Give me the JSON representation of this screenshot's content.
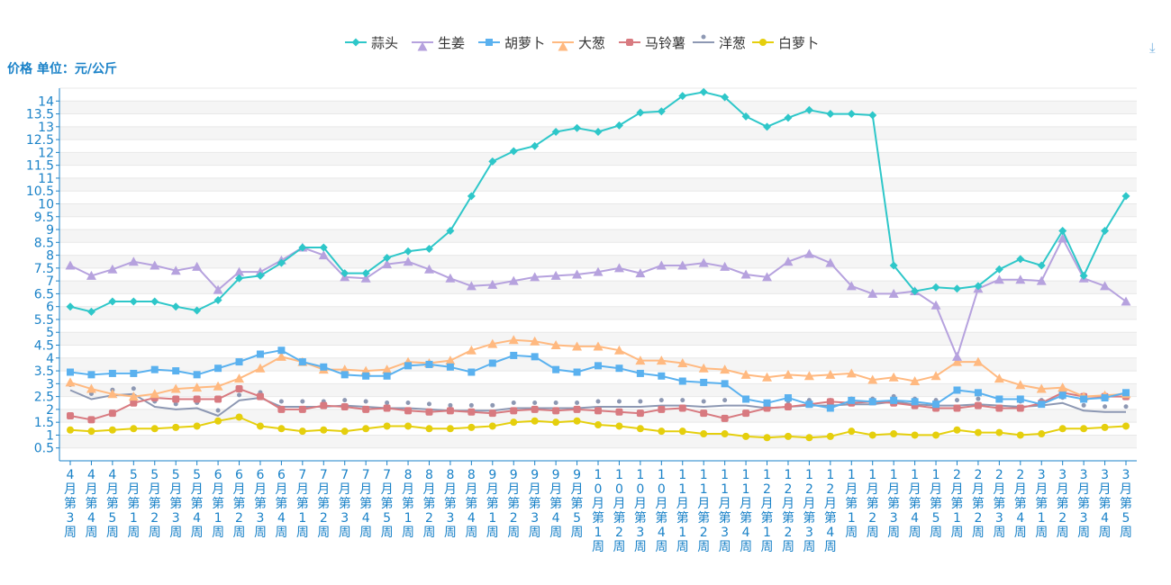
{
  "chart_data": {
    "type": "line",
    "ylabel": "价格 单位：元/公斤",
    "ylim": [
      0,
      14.5
    ],
    "yticks": [
      0.5,
      1,
      1.5,
      2,
      2.5,
      3,
      3.5,
      4,
      4.5,
      5,
      5.5,
      6,
      6.5,
      7,
      7.5,
      8,
      8.5,
      9,
      9.5,
      10,
      10.5,
      11,
      11.5,
      12,
      12.5,
      13,
      13.5,
      14
    ],
    "grid": true,
    "legend_position": "top-center",
    "categories": [
      "4月第3周",
      "4月第4周",
      "4月第5周",
      "5月第1周",
      "5月第2周",
      "5月第3周",
      "5月第4周",
      "6月第1周",
      "6月第2周",
      "6月第3周",
      "6月第4周",
      "7月第1周",
      "7月第2周",
      "7月第3周",
      "7月第4周",
      "7月第5周",
      "8月第1周",
      "8月第2周",
      "8月第3周",
      "8月第4周",
      "9月第1周",
      "9月第2周",
      "9月第3周",
      "9月第4周",
      "9月第5周",
      "10月第1周",
      "10月第2周",
      "10月第3周",
      "10月第4周",
      "11月第1周",
      "11月第2周",
      "11月第3周",
      "11月第4周",
      "12月第1周",
      "12月第2周",
      "12月第3周",
      "12月第4周",
      "1月第1周",
      "1月第2周",
      "1月第3周",
      "1月第4周",
      "1月第5周",
      "2月第1周",
      "2月第2周",
      "2月第3周",
      "2月第4周",
      "3月第1周",
      "3月第2周",
      "3月第3周",
      "3月第4周",
      "3月第5周"
    ],
    "series": [
      {
        "name": "蒜头",
        "color": "#2ec7c9",
        "symbol": "diamond",
        "values": [
          6.0,
          5.8,
          6.2,
          6.2,
          6.2,
          6.0,
          5.85,
          6.25,
          7.1,
          7.2,
          7.7,
          8.3,
          8.3,
          7.3,
          7.3,
          7.9,
          8.15,
          8.25,
          8.95,
          10.3,
          11.65,
          12.05,
          12.25,
          12.8,
          12.95,
          12.8,
          13.05,
          13.55,
          13.6,
          14.2,
          14.35,
          14.15,
          13.4,
          13.0,
          13.35,
          13.65,
          13.5,
          13.5,
          13.45,
          7.6,
          6.6,
          6.75,
          6.7,
          6.8,
          7.45,
          7.85,
          7.6,
          8.95,
          7.2,
          8.95,
          10.3
        ]
      },
      {
        "name": "生姜",
        "color": "#b6a2de",
        "symbol": "triangle",
        "values": [
          7.6,
          7.2,
          7.45,
          7.75,
          7.6,
          7.4,
          7.55,
          6.65,
          7.35,
          7.35,
          7.8,
          8.3,
          8.0,
          7.15,
          7.1,
          7.65,
          7.75,
          7.45,
          7.1,
          6.8,
          6.85,
          7.0,
          7.15,
          7.2,
          7.25,
          7.35,
          7.5,
          7.3,
          7.6,
          7.6,
          7.7,
          7.55,
          7.25,
          7.15,
          7.75,
          8.05,
          7.7,
          6.8,
          6.5,
          6.5,
          6.6,
          6.05,
          4.05,
          6.7,
          7.05,
          7.05,
          7.0,
          8.65,
          7.1,
          6.8,
          6.2
        ]
      },
      {
        "name": "胡萝卜",
        "color": "#5ab1ef",
        "symbol": "rect",
        "values": [
          3.45,
          3.35,
          3.4,
          3.4,
          3.55,
          3.5,
          3.35,
          3.6,
          3.85,
          4.15,
          4.3,
          3.85,
          3.65,
          3.35,
          3.3,
          3.3,
          3.7,
          3.75,
          3.65,
          3.45,
          3.8,
          4.1,
          4.05,
          3.55,
          3.45,
          3.7,
          3.6,
          3.4,
          3.3,
          3.1,
          3.05,
          3.0,
          2.4,
          2.25,
          2.45,
          2.2,
          2.05,
          2.35,
          2.3,
          2.35,
          2.3,
          2.2,
          2.75,
          2.65,
          2.4,
          2.4,
          2.2,
          2.55,
          2.4,
          2.45,
          2.65
        ]
      },
      {
        "name": "大葱",
        "color": "#ffb980",
        "symbol": "triangle",
        "values": [
          3.05,
          2.8,
          2.6,
          2.5,
          2.6,
          2.8,
          2.85,
          2.9,
          3.2,
          3.6,
          4.05,
          3.85,
          3.55,
          3.55,
          3.5,
          3.55,
          3.85,
          3.8,
          3.9,
          4.3,
          4.55,
          4.7,
          4.65,
          4.5,
          4.45,
          4.45,
          4.3,
          3.9,
          3.9,
          3.8,
          3.6,
          3.55,
          3.35,
          3.25,
          3.35,
          3.3,
          3.35,
          3.4,
          3.15,
          3.25,
          3.1,
          3.3,
          3.85,
          3.85,
          3.2,
          2.95,
          2.8,
          2.85,
          2.5,
          2.55,
          2.6
        ]
      },
      {
        "name": "马铃薯",
        "color": "#d87a80",
        "symbol": "roundrect",
        "values": [
          1.75,
          1.6,
          1.85,
          2.25,
          2.45,
          2.4,
          2.4,
          2.4,
          2.8,
          2.5,
          2.0,
          2.0,
          2.15,
          2.1,
          2.0,
          2.05,
          1.95,
          1.9,
          1.95,
          1.9,
          1.85,
          1.95,
          2.0,
          1.95,
          2.0,
          1.95,
          1.9,
          1.85,
          2.0,
          2.05,
          1.85,
          1.65,
          1.85,
          2.05,
          2.1,
          2.2,
          2.3,
          2.25,
          2.3,
          2.25,
          2.15,
          2.05,
          2.05,
          2.15,
          2.05,
          2.05,
          2.25,
          2.65,
          2.5,
          2.5,
          2.5
        ]
      },
      {
        "name": "洋葱",
        "color": "#8d98b3",
        "symbol": "pin",
        "values": [
          2.75,
          2.4,
          2.55,
          2.6,
          2.1,
          2.0,
          2.05,
          1.75,
          2.35,
          2.45,
          2.1,
          2.1,
          2.1,
          2.15,
          2.1,
          2.05,
          2.05,
          2.0,
          1.95,
          1.95,
          1.95,
          2.05,
          2.05,
          2.05,
          2.05,
          2.1,
          2.1,
          2.1,
          2.15,
          2.15,
          2.1,
          2.15,
          2.15,
          2.05,
          2.1,
          2.15,
          2.15,
          2.2,
          2.2,
          2.3,
          2.2,
          2.15,
          2.15,
          2.2,
          2.15,
          2.1,
          2.15,
          2.25,
          1.95,
          1.9,
          1.9
        ]
      },
      {
        "name": "白萝卜",
        "color": "#e5cf0d",
        "symbol": "circle",
        "values": [
          1.2,
          1.15,
          1.2,
          1.25,
          1.25,
          1.3,
          1.35,
          1.55,
          1.7,
          1.35,
          1.25,
          1.15,
          1.2,
          1.15,
          1.25,
          1.35,
          1.35,
          1.25,
          1.25,
          1.3,
          1.35,
          1.5,
          1.55,
          1.5,
          1.55,
          1.4,
          1.35,
          1.25,
          1.15,
          1.15,
          1.05,
          1.05,
          0.95,
          0.9,
          0.95,
          0.9,
          0.95,
          1.15,
          1.0,
          1.05,
          1.0,
          1.0,
          1.2,
          1.1,
          1.1,
          1.0,
          1.05,
          1.25,
          1.25,
          1.3,
          1.35
        ]
      }
    ]
  },
  "toolbar": {
    "download_icon": "download-icon",
    "download_glyph": "⤓"
  }
}
